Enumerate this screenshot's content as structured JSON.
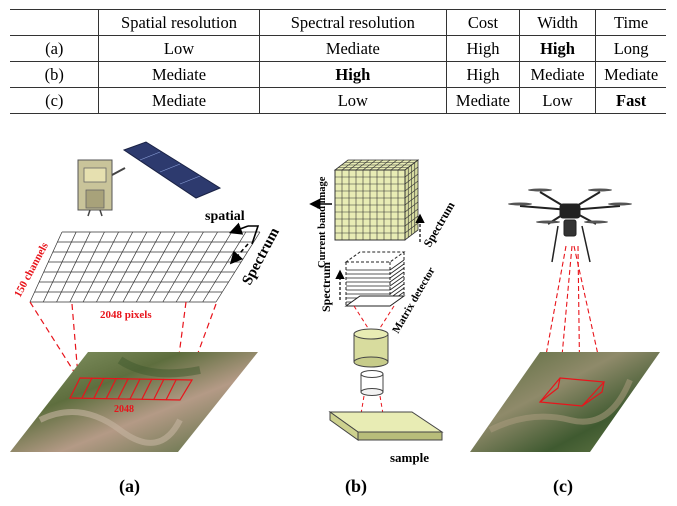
{
  "table": {
    "headers": [
      "",
      "Spatial resolution",
      "Spectral resolution",
      "Cost",
      "Width",
      "Time"
    ],
    "rows": [
      [
        "(a)",
        "Low",
        "Mediate",
        "High",
        "High",
        "Long"
      ],
      [
        "(b)",
        "Mediate",
        "High",
        "High",
        "Mediate",
        "Mediate"
      ],
      [
        "(c)",
        "Mediate",
        "Low",
        "Mediate",
        "Low",
        "Fast"
      ]
    ],
    "bold_cells": [
      [
        0,
        4
      ],
      [
        1,
        2
      ],
      [
        2,
        5
      ]
    ]
  },
  "panel_a": {
    "spatial_label": "spatial",
    "spectrum_label": "Spectrum",
    "channels_label": "150 channels",
    "pixels_label": "2048 pixels",
    "ground_label": "2048",
    "caption": "(a)"
  },
  "panel_b": {
    "band_label": "Current band image",
    "spectrum_side_label": "Spectrum",
    "spectrum_cube_label": "Spectrum",
    "detector_label": "Matrix detector",
    "sample_label": "sample",
    "caption": "(b)"
  },
  "panel_c": {
    "caption": "(c)"
  },
  "colors": {
    "red": "#e8141b",
    "cube_fill": "#e8ecb4",
    "solar_panel": "#2d3a6e",
    "terrain_green": "#6b7a45"
  }
}
